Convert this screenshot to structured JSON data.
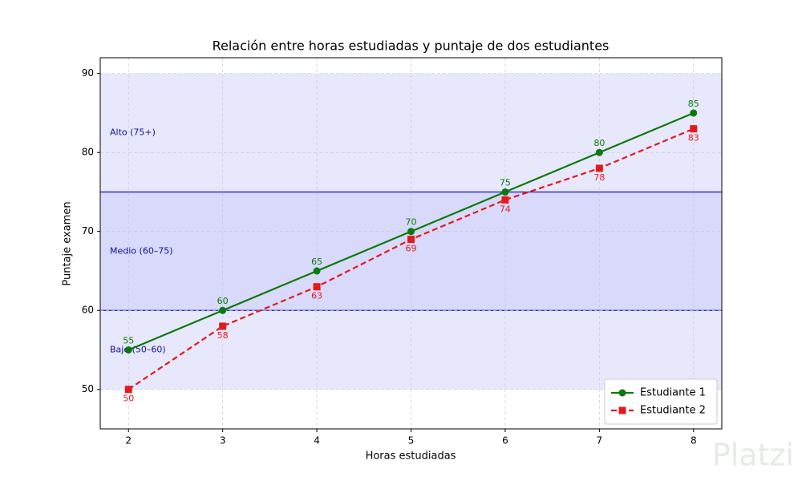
{
  "chart_data": {
    "type": "line",
    "title": "Relación entre horas estudiadas y puntaje de dos estudiantes",
    "x_label": "Horas estudiadas",
    "y_label": "Puntaje examen",
    "x": [
      2,
      3,
      4,
      5,
      6,
      7,
      8
    ],
    "series": [
      {
        "name": "Estudiante 1",
        "color": "#0a7a0a",
        "marker": "circle",
        "dash": false,
        "label_side": "above",
        "values": [
          55,
          60,
          65,
          70,
          75,
          80,
          85
        ]
      },
      {
        "name": "Estudiante 2",
        "color": "#e31a1c",
        "marker": "square",
        "dash": true,
        "label_side": "below",
        "values": [
          50,
          58,
          63,
          69,
          74,
          78,
          83
        ]
      }
    ],
    "bands": [
      {
        "label": "Bajo (50–60)",
        "range": [
          50,
          60
        ],
        "color": "#e8e8fc"
      },
      {
        "label": "Medio (60–75)",
        "range": [
          60,
          75
        ],
        "color": "#d9d9fb"
      },
      {
        "label": "Alto (75+)",
        "range": [
          75,
          90
        ],
        "color": "#e8e8fc"
      }
    ],
    "xlim": [
      1.7,
      8.3
    ],
    "ylim": [
      45,
      92
    ],
    "xticks": [
      2,
      3,
      4,
      5,
      6,
      7,
      8
    ],
    "yticks": [
      50,
      60,
      70,
      80,
      90
    ],
    "grid": true,
    "legend": "lower right"
  },
  "watermark": "Platzi"
}
